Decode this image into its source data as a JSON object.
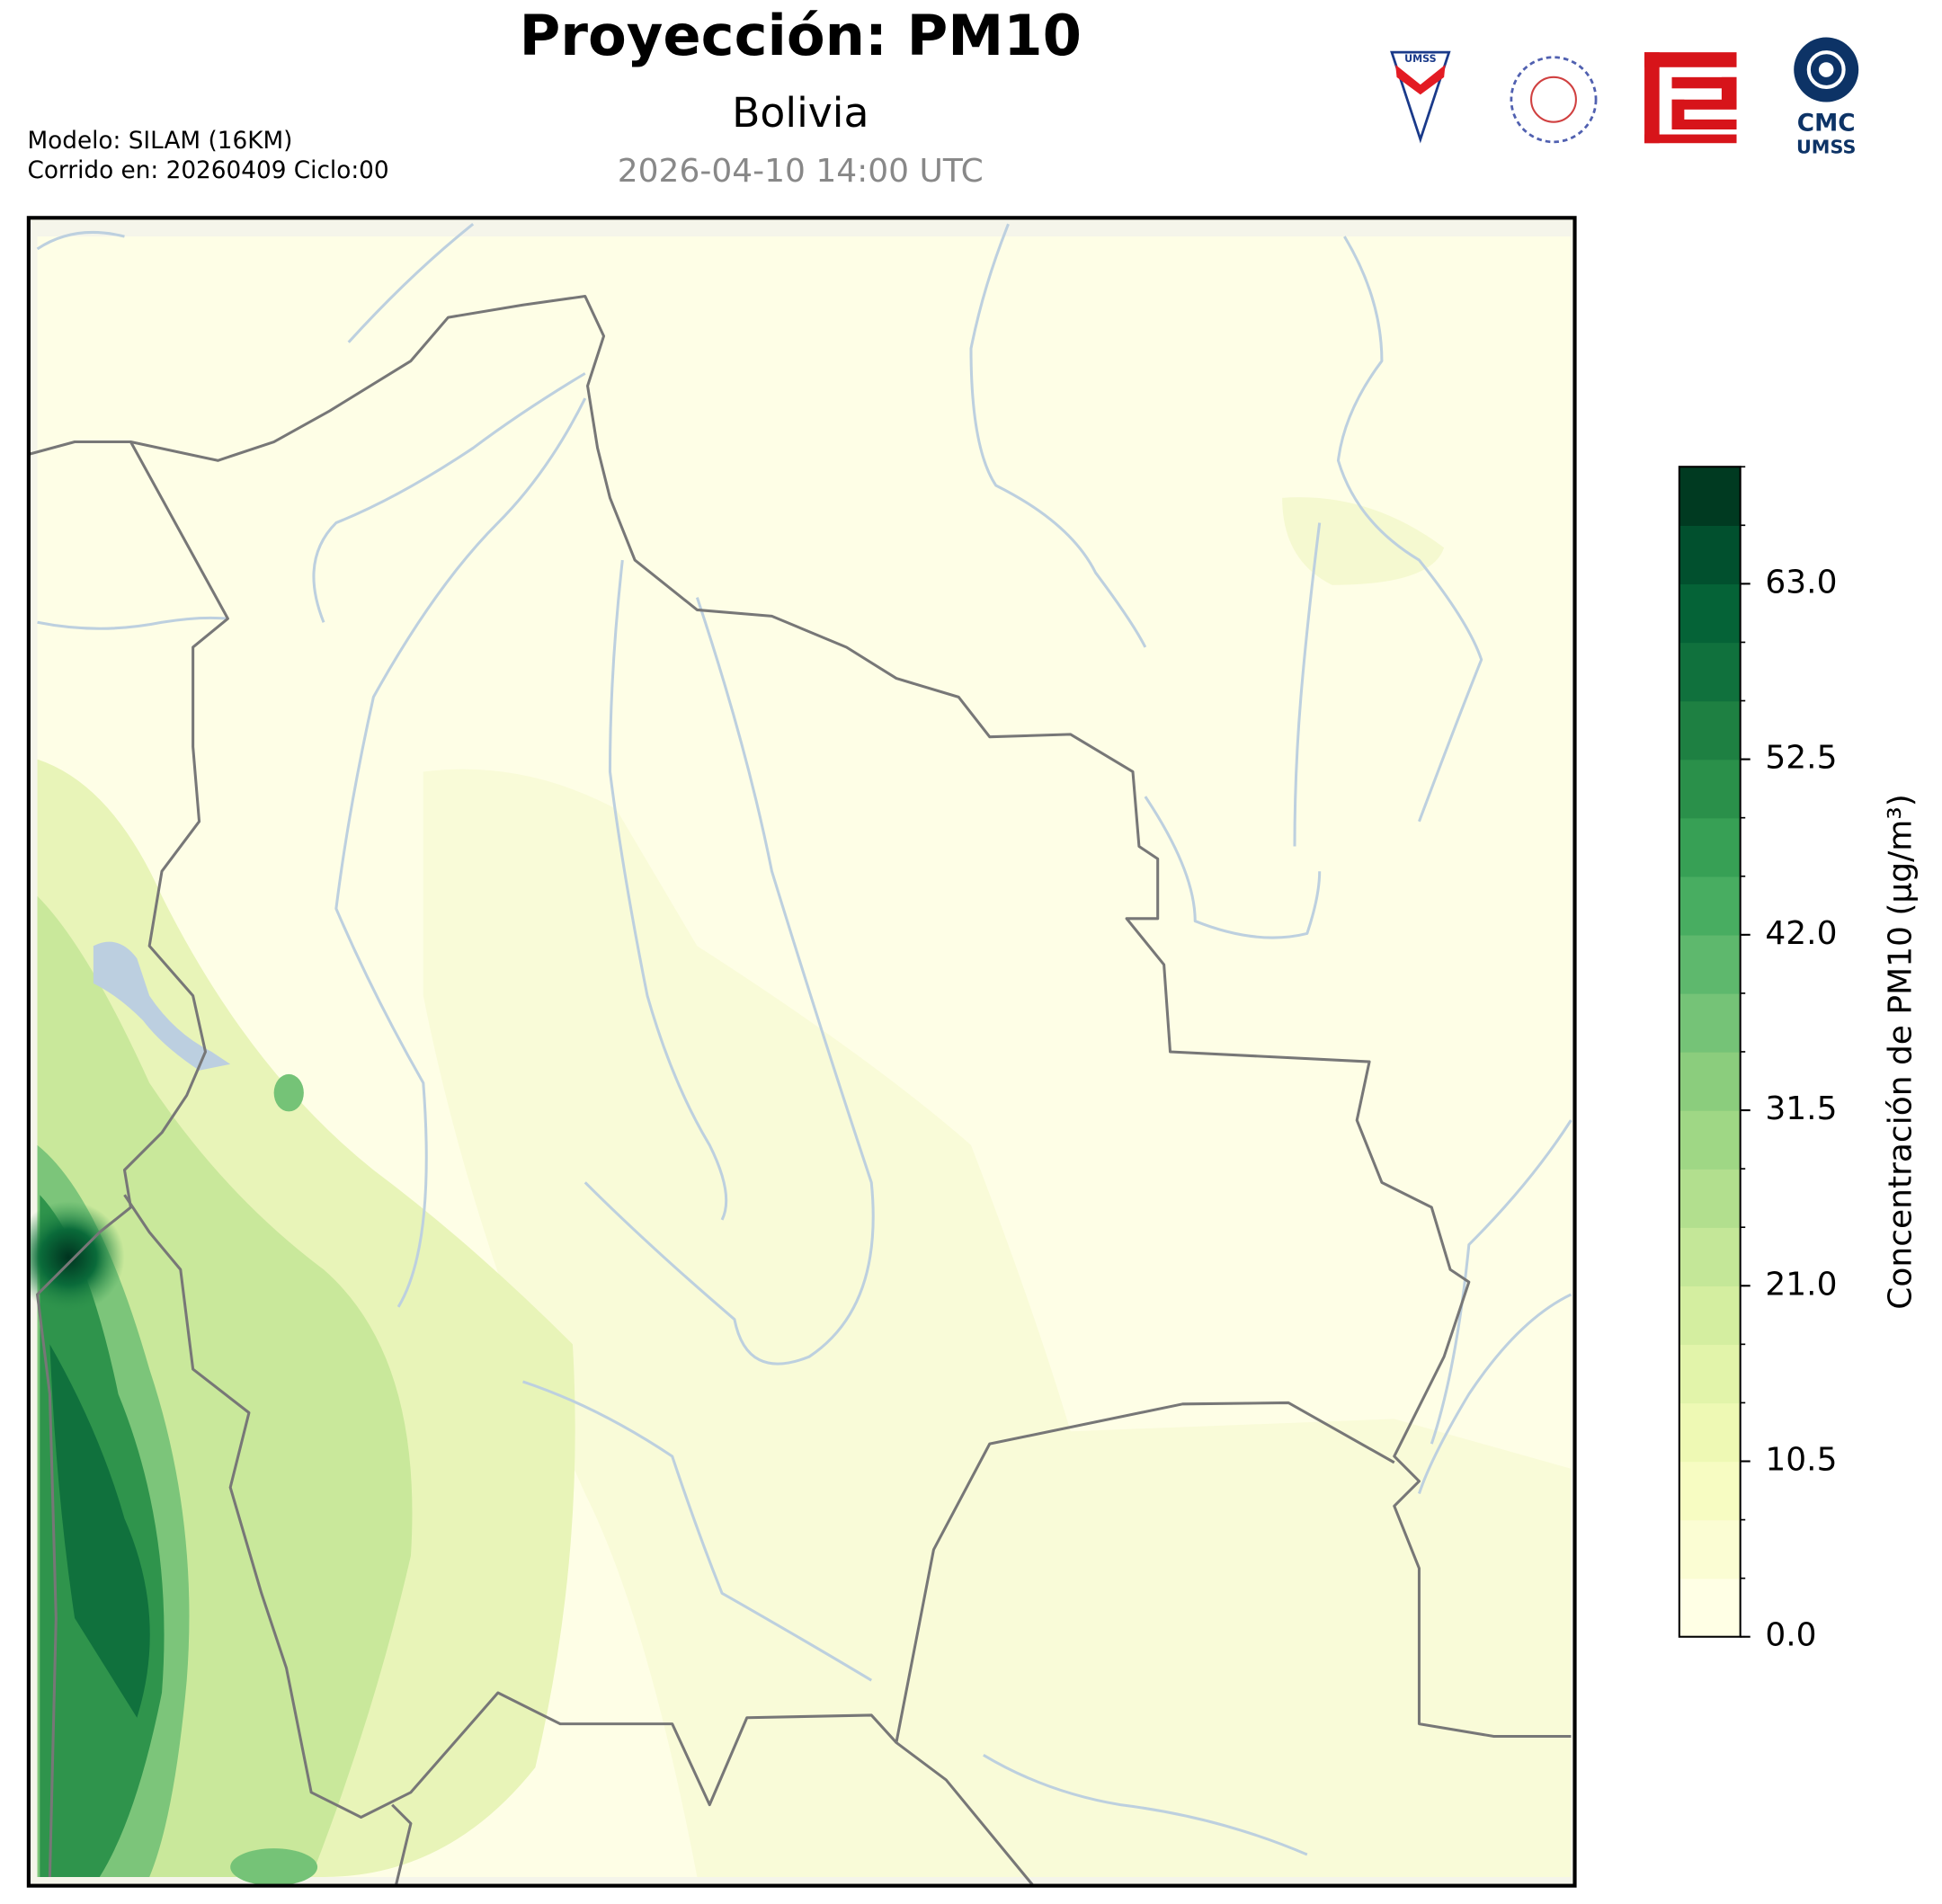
{
  "header": {
    "title": "Proyección: PM10",
    "subtitle": "Bolivia",
    "date": "2026-04-10 14:00 UTC",
    "model": "Modelo: SILAM (16KM)",
    "run": "Corrido en: 20260409 Ciclo:00"
  },
  "logos": {
    "umss": "UMSS",
    "cmc": "CMC",
    "cmc_sub": "UMSS"
  },
  "colorbar": {
    "label": "Concentración de PM10 (µg/m³)",
    "ylim": [
      0,
      70
    ],
    "yticks": [
      {
        "value": 0,
        "label": "0.0"
      },
      10.5,
      {
        "value": 21,
        "label": "21.0"
      },
      31.5,
      {
        "value": 42,
        "label": "42.0"
      },
      52.5,
      {
        "value": 63,
        "label": "63.0"
      }
    ],
    "levels": [
      0,
      3.5,
      7,
      10.5,
      14,
      17.5,
      21,
      24.5,
      28,
      31.5,
      35,
      38.5,
      42,
      45.5,
      49,
      52.5,
      56,
      59.5,
      63,
      66.5,
      70
    ],
    "colors": [
      "#ffffe5",
      "#fbfdd3",
      "#f7fcc2",
      "#eef9b4",
      "#e2f4aa",
      "#d4eea0",
      "#c4e798",
      "#b2df8e",
      "#9fd785",
      "#8bcd7d",
      "#75c377",
      "#5eb86d",
      "#48ad61",
      "#37a055",
      "#2a904a",
      "#1e8042",
      "#10713d",
      "#056337",
      "#01502e",
      "#003a21"
    ]
  }
}
